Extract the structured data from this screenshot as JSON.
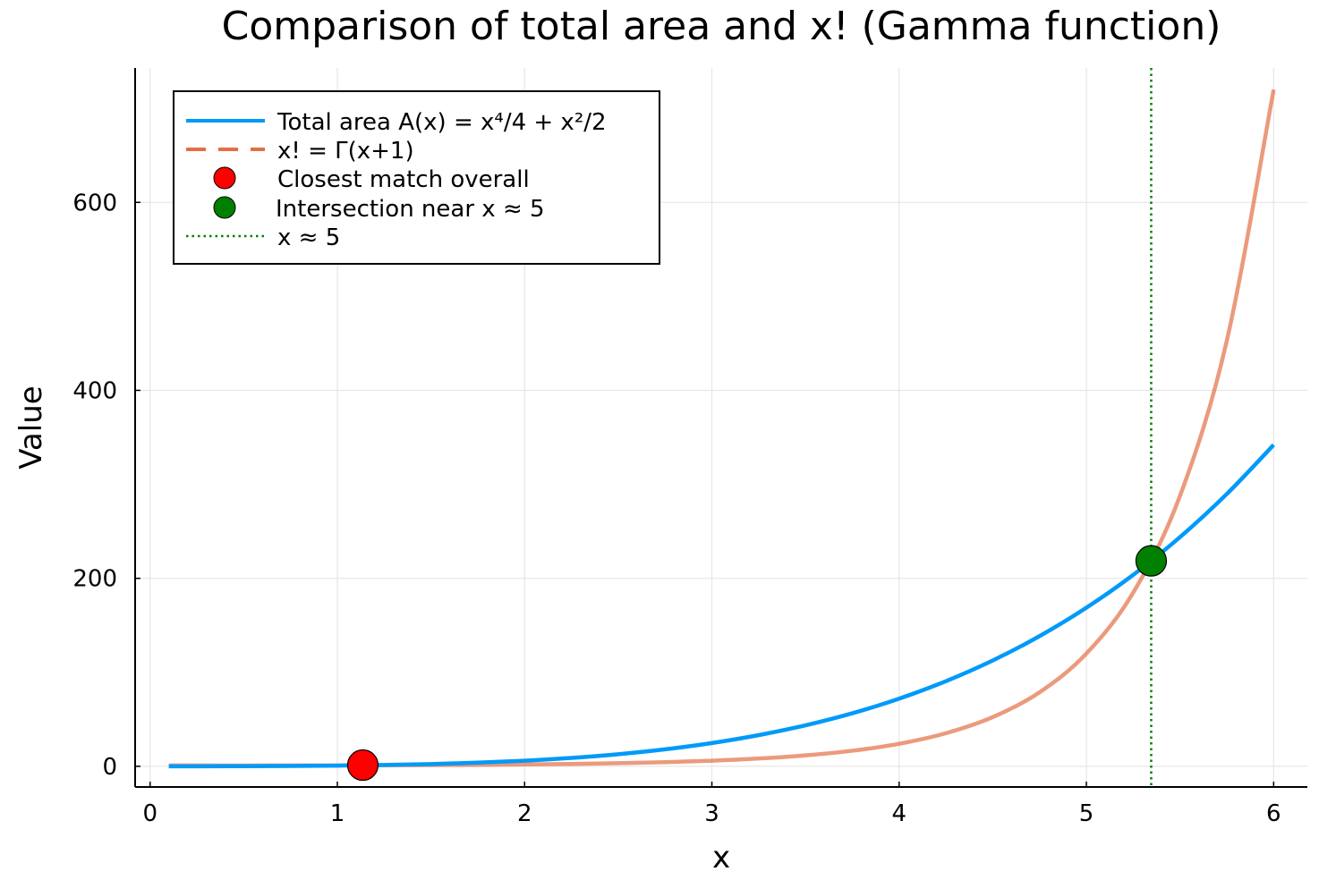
{
  "chart_data": {
    "type": "line",
    "title": "Comparison of total area and x! (Gamma function)",
    "xlabel": "x",
    "ylabel": "Value",
    "xlim": [
      -0.08,
      6.18
    ],
    "ylim": [
      -22,
      743
    ],
    "xticks": [
      0,
      1,
      2,
      3,
      4,
      5,
      6
    ],
    "yticks": [
      0,
      200,
      400,
      600
    ],
    "grid": true,
    "legend_position": "top-left",
    "x": [
      0.1,
      0.25,
      0.5,
      0.75,
      1,
      1.25,
      1.5,
      1.75,
      2,
      2.25,
      2.5,
      2.75,
      3,
      3.25,
      3.5,
      3.75,
      4,
      4.25,
      4.5,
      4.75,
      5,
      5.25,
      5.5,
      5.75,
      6
    ],
    "series": [
      {
        "name": "Total area A(x) = x⁴/4 + x²/2",
        "color": "#009af9",
        "style": "solid",
        "values": [
          0.005,
          0.032,
          0.141,
          0.36,
          0.75,
          1.39,
          2.39,
          3.88,
          6,
          8.94,
          12.89,
          18.08,
          24.75,
          33.17,
          43.64,
          56.47,
          72,
          90.6,
          112.64,
          138.55,
          168.75,
          203.7,
          243.89,
          289.81,
          342
        ]
      },
      {
        "name": "x! = Γ(x+1)",
        "color": "#e26f46",
        "style": "dash",
        "values": [
          0.951,
          0.906,
          0.886,
          0.919,
          1,
          1.133,
          1.329,
          1.608,
          2,
          2.549,
          3.323,
          4.423,
          6,
          8.285,
          11.63,
          16.59,
          24,
          35.21,
          52.34,
          78.78,
          120,
          184.86,
          287.89,
          452.98,
          720
        ]
      }
    ],
    "points": [
      {
        "name": "Closest match overall",
        "x": 1.136,
        "y": 1.3,
        "color": "#ff0000"
      },
      {
        "name": "Intersection near x ≈ 5",
        "x": 5.346,
        "y": 218.6,
        "color": "#008000"
      }
    ],
    "vlines": [
      {
        "name": "x ≈ 5",
        "x": 5.346,
        "color": "#008000",
        "style": "dot"
      }
    ]
  }
}
